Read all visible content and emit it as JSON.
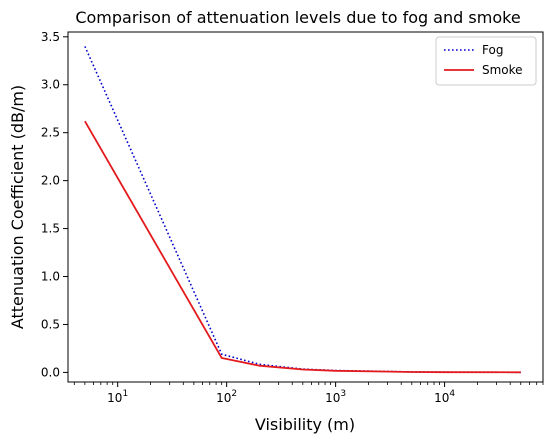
{
  "chart_data": {
    "type": "line",
    "title": "Comparison of attenuation levels due to fog and smoke",
    "xlabel": "Visibility (m)",
    "ylabel": "Attenuation Coefficient (dB/m)",
    "xscale": "log",
    "xlim": [
      3.5,
      80000
    ],
    "ylim": [
      -0.1,
      3.55
    ],
    "grid": false,
    "legend_position": "top-right",
    "x_ticks": [
      {
        "value": 10,
        "label": "10^1"
      },
      {
        "value": 100,
        "label": "10^2"
      },
      {
        "value": 1000,
        "label": "10^3"
      },
      {
        "value": 10000,
        "label": "10^4"
      }
    ],
    "y_ticks": [
      {
        "value": 0.0,
        "label": "0.0"
      },
      {
        "value": 0.5,
        "label": "0.5"
      },
      {
        "value": 1.0,
        "label": "1.0"
      },
      {
        "value": 1.5,
        "label": "1.5"
      },
      {
        "value": 2.0,
        "label": "2.0"
      },
      {
        "value": 2.5,
        "label": "2.5"
      },
      {
        "value": 3.0,
        "label": "3.0"
      },
      {
        "value": 3.5,
        "label": "3.5"
      }
    ],
    "series": [
      {
        "name": "Fog",
        "color": "#0000cc",
        "style": "dotted",
        "x": [
          5,
          90,
          200,
          500,
          1000,
          5000,
          10000,
          50000
        ],
        "y": [
          3.4,
          0.19,
          0.085,
          0.035,
          0.02,
          0.005,
          0.003,
          0.001
        ]
      },
      {
        "name": "Smoke",
        "color": "#e41a1c",
        "style": "solid",
        "x": [
          5,
          90,
          200,
          500,
          1000,
          5000,
          10000,
          50000
        ],
        "y": [
          2.62,
          0.15,
          0.07,
          0.03,
          0.017,
          0.004,
          0.002,
          0.001
        ]
      }
    ]
  }
}
